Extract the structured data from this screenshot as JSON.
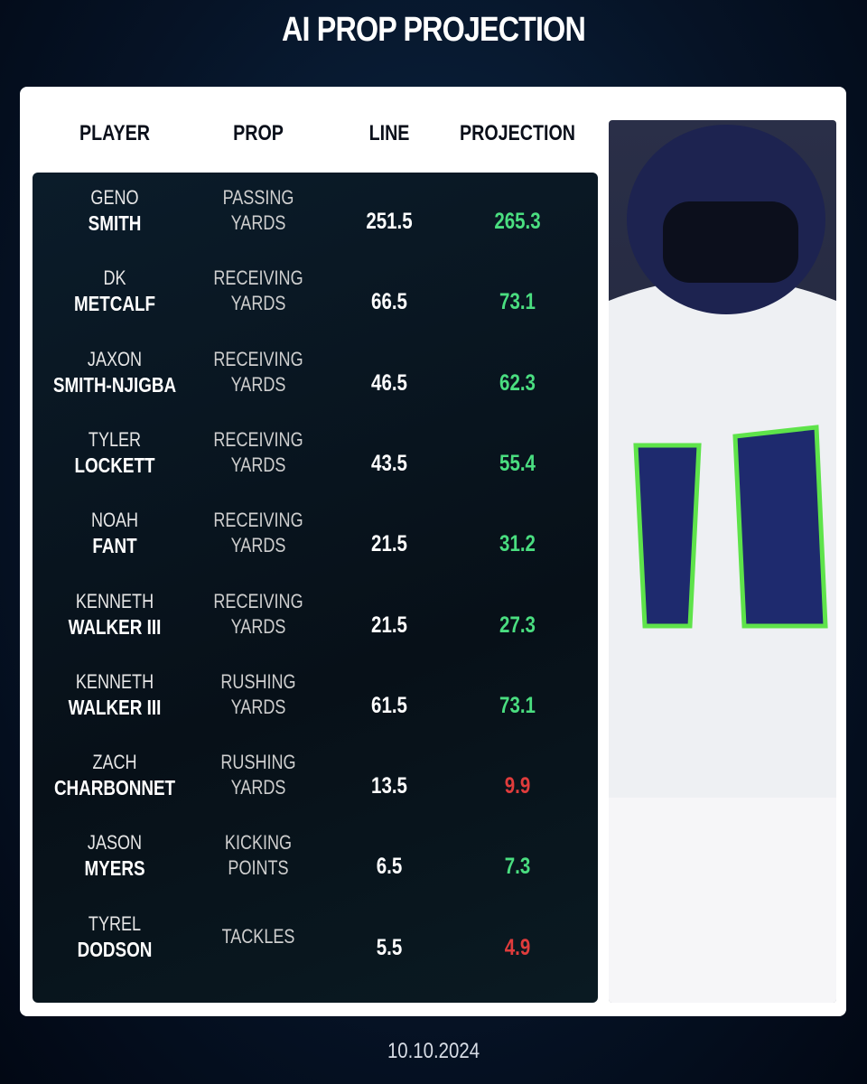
{
  "title": "AI PROP PROJECTION",
  "table": {
    "headers": [
      "PLAYER",
      "PROP",
      "LINE",
      "PROJECTION"
    ],
    "rows": [
      {
        "first": "GENO",
        "last": "SMITH",
        "prop": [
          "PASSING",
          "YARDS"
        ],
        "line": 251.5,
        "projection": 265.3,
        "color": "#4ade80"
      },
      {
        "first": "DK",
        "last": "METCALF",
        "prop": [
          "RECEIVING",
          "YARDS"
        ],
        "line": 66.5,
        "projection": 73.1,
        "color": "#4ade80"
      },
      {
        "first": "JAXON",
        "last": "SMITH-NJIGBA",
        "prop": [
          "RECEIVING",
          "YARDS"
        ],
        "line": 46.5,
        "projection": 62.3,
        "color": "#4ade80"
      },
      {
        "first": "TYLER",
        "last": "LOCKETT",
        "prop": [
          "RECEIVING",
          "YARDS"
        ],
        "line": 43.5,
        "projection": 55.4,
        "color": "#4ade80"
      },
      {
        "first": "NOAH",
        "last": "FANT",
        "prop": [
          "RECEIVING",
          "YARDS"
        ],
        "line": 21.5,
        "projection": 31.2,
        "color": "#4ade80"
      },
      {
        "first": "KENNETH",
        "last": "WALKER III",
        "prop": [
          "RECEIVING",
          "YARDS"
        ],
        "line": 21.5,
        "projection": 27.3,
        "color": "#4ade80"
      },
      {
        "first": "KENNETH",
        "last": "WALKER III",
        "prop": [
          "RUSHING",
          "YARDS"
        ],
        "line": 61.5,
        "projection": 73.1,
        "color": "#4ade80"
      },
      {
        "first": "ZACH",
        "last": "CHARBONNET",
        "prop": [
          "RUSHING",
          "YARDS"
        ],
        "line": 13.5,
        "projection": 9.9,
        "color": "#e03c3c"
      },
      {
        "first": "JASON",
        "last": "MYERS",
        "prop": [
          "KICKING",
          "POINTS"
        ],
        "line": 6.5,
        "projection": 7.3,
        "color": "#4ade80"
      },
      {
        "first": "TYREL",
        "last": "DODSON",
        "prop": [
          "TACKLES"
        ],
        "line": 5.5,
        "projection": 4.9,
        "color": "#e03c3c"
      }
    ]
  },
  "date": "10.10.2024"
}
